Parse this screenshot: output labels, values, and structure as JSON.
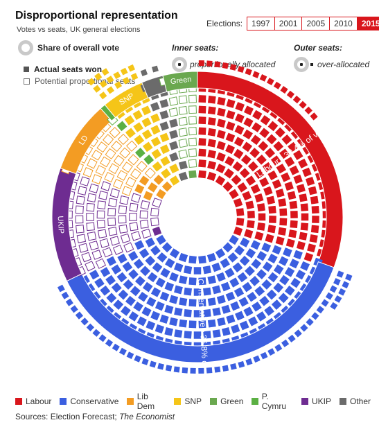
{
  "header": {
    "title": "Disproportional representation",
    "subtitle": "Votes vs seats, UK general elections",
    "elections_label": "Elections:",
    "election_tabs": [
      "1997",
      "2001",
      "2005",
      "2010",
      "2015"
    ],
    "active_tab": "2015"
  },
  "key": {
    "share_label": "Share of overall vote",
    "actual_label": "Actual seats won",
    "potential_label": "Potential proportional seats",
    "inner_title": "Inner seats:",
    "inner_desc": "proportionally allocated",
    "outer_title": "Outer seats:",
    "outer_desc": "over-allocated"
  },
  "chart_data": {
    "type": "parliament-donut",
    "title": "Disproportional representation",
    "subtitle": "Votes vs seats, UK general elections",
    "election": "2015",
    "parties": [
      {
        "name": "Labour",
        "color": "#d9161c",
        "vote_share": 30.4,
        "seats": 231,
        "ring_label": "Labour • 30.4% of vote (231 seats)"
      },
      {
        "name": "Conservative",
        "color": "#3b5fe0",
        "vote_share": 36.8,
        "seats": 331,
        "ring_label": "Conservative • 36.8% of vote (331 seats)"
      },
      {
        "name": "UKIP",
        "color": "#6e2c91",
        "vote_share": 12.6,
        "seats": 1,
        "ring_label": "UKIP"
      },
      {
        "name": "Lib Dem",
        "color": "#f39c23",
        "vote_share": 7.9,
        "seats": 8,
        "ring_label": "LD"
      },
      {
        "name": "P. Cymru",
        "color": "#5bb043",
        "vote_share": 0.6,
        "seats": 3,
        "ring_label": ""
      },
      {
        "name": "SNP",
        "color": "#f5c518",
        "vote_share": 4.7,
        "seats": 56,
        "ring_label": "SNP"
      },
      {
        "name": "Other",
        "color": "#6b6b6b",
        "vote_share": 2.4,
        "seats": 19,
        "ring_label": ""
      },
      {
        "name": "Green",
        "color": "#6aa84f",
        "vote_share": 3.8,
        "seats": 1,
        "ring_label": "Green"
      }
    ]
  },
  "legend": [
    {
      "name": "Labour",
      "color": "#d9161c"
    },
    {
      "name": "Conservative",
      "color": "#3b5fe0"
    },
    {
      "name": "Lib Dem",
      "color": "#f39c23"
    },
    {
      "name": "SNP",
      "color": "#f5c518"
    },
    {
      "name": "Green",
      "color": "#6aa84f"
    },
    {
      "name": "P. Cymru",
      "color": "#5bb043"
    },
    {
      "name": "UKIP",
      "color": "#6e2c91"
    },
    {
      "name": "Other",
      "color": "#6b6b6b"
    }
  ],
  "footer": {
    "sources_prefix": "Sources: Election Forecast; ",
    "sources_italic": "The Economist"
  }
}
